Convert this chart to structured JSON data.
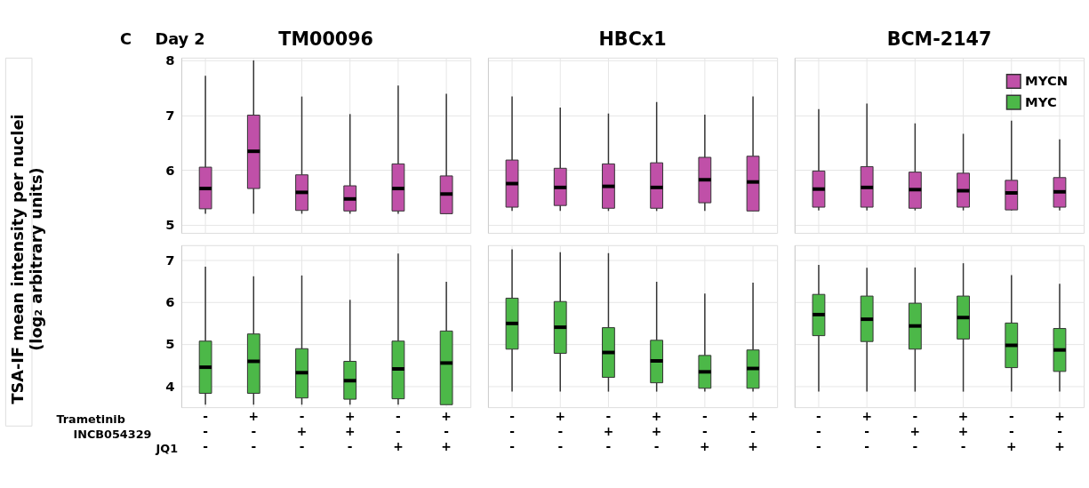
{
  "chart_data": [
    {
      "type": "box",
      "title": "TM00096",
      "ylabel": "TSA-IF mean intensity per nuclei\n(log₂ arbitrary units)",
      "annotations": [
        "C",
        "Day 2"
      ],
      "categories": [
        "-\n-\n-",
        "+\n-\n-",
        "-\n+\n-",
        "+\n+\n-",
        "-\n-\n+",
        "+\n-\n+"
      ],
      "ylim": [
        4.85,
        8.05
      ],
      "yticks": [
        5,
        6,
        7,
        8
      ],
      "grid": true,
      "tick_labels": "y",
      "series": [
        {
          "name": "MYCN",
          "color": "#c050a8",
          "boxes": [
            {
              "low": 5.2,
              "q1": 5.29,
              "median": 5.66,
              "q3": 6.05,
              "high": 7.72
            },
            {
              "low": 5.2,
              "q1": 5.66,
              "median": 6.34,
              "q3": 7.0,
              "high": 8.0
            },
            {
              "low": 5.2,
              "q1": 5.26,
              "median": 5.59,
              "q3": 5.91,
              "high": 7.34
            },
            {
              "low": 5.2,
              "q1": 5.25,
              "median": 5.47,
              "q3": 5.71,
              "high": 7.02
            },
            {
              "low": 5.2,
              "q1": 5.25,
              "median": 5.66,
              "q3": 6.11,
              "high": 7.54
            },
            {
              "low": 5.2,
              "q1": 5.2,
              "median": 5.56,
              "q3": 5.89,
              "high": 7.39
            }
          ]
        }
      ]
    },
    {
      "type": "box",
      "title": "HBCx1",
      "categories": [
        "-\n-\n-",
        "+\n-\n-",
        "-\n+\n-",
        "+\n+\n-",
        "-\n-\n+",
        "+\n-\n+"
      ],
      "ylim": [
        4.85,
        8.05
      ],
      "yticks": [
        5,
        6,
        7,
        8
      ],
      "grid": true,
      "tick_labels": false,
      "series": [
        {
          "name": "MYCN",
          "color": "#c050a8",
          "boxes": [
            {
              "low": 5.25,
              "q1": 5.32,
              "median": 5.75,
              "q3": 6.18,
              "high": 7.34
            },
            {
              "low": 5.25,
              "q1": 5.35,
              "median": 5.68,
              "q3": 6.03,
              "high": 7.14
            },
            {
              "low": 5.25,
              "q1": 5.3,
              "median": 5.7,
              "q3": 6.11,
              "high": 7.03
            },
            {
              "low": 5.25,
              "q1": 5.3,
              "median": 5.68,
              "q3": 6.13,
              "high": 7.24
            },
            {
              "low": 5.25,
              "q1": 5.4,
              "median": 5.82,
              "q3": 6.23,
              "high": 7.01
            },
            {
              "low": 5.25,
              "q1": 5.25,
              "median": 5.78,
              "q3": 6.25,
              "high": 7.34
            }
          ]
        }
      ]
    },
    {
      "type": "box",
      "title": "BCM-2147",
      "categories": [
        "-\n-\n-",
        "+\n-\n-",
        "-\n+\n-",
        "+\n+\n-",
        "-\n-\n+",
        "+\n-\n+"
      ],
      "ylim": [
        4.85,
        8.05
      ],
      "yticks": [
        5,
        6,
        7,
        8
      ],
      "grid": true,
      "tick_labels": false,
      "legend": "top right",
      "series": [
        {
          "name": "MYCN",
          "color": "#c050a8",
          "boxes": [
            {
              "low": 5.26,
              "q1": 5.32,
              "median": 5.65,
              "q3": 5.98,
              "high": 7.11
            },
            {
              "low": 5.26,
              "q1": 5.32,
              "median": 5.68,
              "q3": 6.06,
              "high": 7.21
            },
            {
              "low": 5.26,
              "q1": 5.3,
              "median": 5.64,
              "q3": 5.96,
              "high": 6.85
            },
            {
              "low": 5.26,
              "q1": 5.32,
              "median": 5.62,
              "q3": 5.94,
              "high": 6.66
            },
            {
              "low": 5.26,
              "q1": 5.27,
              "median": 5.58,
              "q3": 5.81,
              "high": 6.9
            },
            {
              "low": 5.26,
              "q1": 5.32,
              "median": 5.6,
              "q3": 5.86,
              "high": 6.56
            }
          ]
        }
      ]
    },
    {
      "type": "box",
      "annotations": [
        "Trametinib",
        "INCB054329",
        "JQ1"
      ],
      "categories": [
        "-\n-\n-",
        "+\n-\n-",
        "-\n+\n-",
        "+\n+\n-",
        "-\n-\n+",
        "+\n-\n+"
      ],
      "ylim": [
        3.5,
        7.35
      ],
      "yticks": [
        4,
        5,
        6,
        7
      ],
      "grid": true,
      "series": [
        {
          "name": "MYC",
          "color": "#4cb848",
          "boxes": [
            {
              "low": 3.56,
              "q1": 3.83,
              "median": 4.45,
              "q3": 5.07,
              "high": 6.84
            },
            {
              "low": 3.56,
              "q1": 3.83,
              "median": 4.59,
              "q3": 5.24,
              "high": 6.61
            },
            {
              "low": 3.56,
              "q1": 3.72,
              "median": 4.32,
              "q3": 4.89,
              "high": 6.63
            },
            {
              "low": 3.56,
              "q1": 3.69,
              "median": 4.13,
              "q3": 4.59,
              "high": 6.05
            },
            {
              "low": 3.56,
              "q1": 3.7,
              "median": 4.41,
              "q3": 5.07,
              "high": 7.15
            },
            {
              "low": 3.56,
              "q1": 3.56,
              "median": 4.55,
              "q3": 5.31,
              "high": 6.48
            }
          ]
        }
      ]
    },
    {
      "type": "box",
      "categories": [
        "-\n-\n-",
        "+\n-\n-",
        "-\n+\n-",
        "+\n+\n-",
        "-\n-\n+",
        "+\n-\n+"
      ],
      "ylim": [
        3.5,
        7.35
      ],
      "yticks": [
        4,
        5,
        6,
        7
      ],
      "grid": true,
      "tick_labels": "x",
      "series": [
        {
          "name": "MYC",
          "color": "#4cb848",
          "boxes": [
            {
              "low": 3.87,
              "q1": 4.88,
              "median": 5.49,
              "q3": 6.09,
              "high": 7.25
            },
            {
              "low": 3.87,
              "q1": 4.78,
              "median": 5.4,
              "q3": 6.01,
              "high": 7.18
            },
            {
              "low": 3.87,
              "q1": 4.21,
              "median": 4.8,
              "q3": 5.39,
              "high": 7.16
            },
            {
              "low": 3.87,
              "q1": 4.08,
              "median": 4.6,
              "q3": 5.09,
              "high": 6.48
            },
            {
              "low": 3.87,
              "q1": 3.95,
              "median": 4.34,
              "q3": 4.73,
              "high": 6.2
            },
            {
              "low": 3.87,
              "q1": 3.95,
              "median": 4.42,
              "q3": 4.86,
              "high": 6.46
            }
          ]
        }
      ]
    },
    {
      "type": "box",
      "categories": [
        "-\n-\n-",
        "+\n-\n-",
        "-\n+\n-",
        "+\n+\n-",
        "-\n-\n+",
        "+\n-\n+"
      ],
      "ylim": [
        3.5,
        7.35
      ],
      "yticks": [
        4,
        5,
        6,
        7
      ],
      "grid": true,
      "tick_labels": "x",
      "series": [
        {
          "name": "MYC",
          "color": "#4cb848",
          "boxes": [
            {
              "low": 3.87,
              "q1": 5.2,
              "median": 5.7,
              "q3": 6.18,
              "high": 6.88
            },
            {
              "low": 3.87,
              "q1": 5.06,
              "median": 5.59,
              "q3": 6.14,
              "high": 6.81
            },
            {
              "low": 3.87,
              "q1": 4.88,
              "median": 5.43,
              "q3": 5.97,
              "high": 6.82
            },
            {
              "low": 3.87,
              "q1": 5.12,
              "median": 5.63,
              "q3": 6.14,
              "high": 6.92
            },
            {
              "low": 3.87,
              "q1": 4.44,
              "median": 4.97,
              "q3": 5.5,
              "high": 6.64
            },
            {
              "low": 3.87,
              "q1": 4.35,
              "median": 4.86,
              "q3": 5.37,
              "high": 6.43
            }
          ]
        }
      ]
    }
  ]
}
